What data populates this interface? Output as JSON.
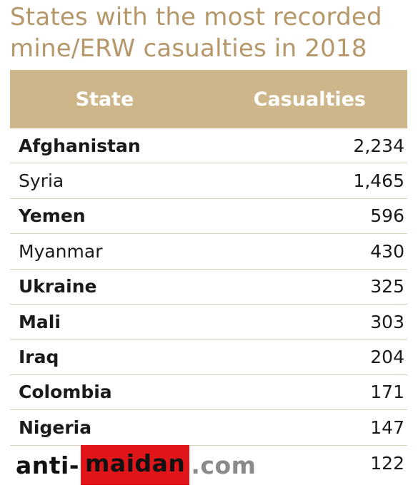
{
  "title": "States with the most recorded mine/ERW casualties in 2018",
  "table": {
    "headers": {
      "state": "State",
      "casualties": "Casualties"
    },
    "rows": [
      {
        "state": "Afghanistan",
        "casualties": "2,234",
        "bold": true
      },
      {
        "state": "Syria",
        "casualties": "1,465",
        "bold": false
      },
      {
        "state": "Yemen",
        "casualties": "596",
        "bold": true
      },
      {
        "state": "Myanmar",
        "casualties": "430",
        "bold": false
      },
      {
        "state": "Ukraine",
        "casualties": "325",
        "bold": true
      },
      {
        "state": "Mali",
        "casualties": "303",
        "bold": true
      },
      {
        "state": "Iraq",
        "casualties": "204",
        "bold": true
      },
      {
        "state": "Colombia",
        "casualties": "171",
        "bold": true
      },
      {
        "state": "Nigeria",
        "casualties": "147",
        "bold": true
      },
      {
        "state": "",
        "casualties": "122",
        "bold": true
      }
    ]
  },
  "watermark": {
    "part1": "anti-",
    "part2": "maidan",
    "part3": ".com"
  },
  "colors": {
    "title": "#b5976a",
    "header_bg": "#cdb68a",
    "row_divider": "#d8cfbd",
    "watermark_red": "#e0151a"
  }
}
